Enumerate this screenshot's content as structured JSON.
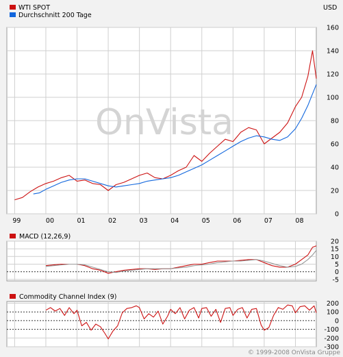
{
  "currency": "USD",
  "watermark": "OnVista",
  "copyright": "© 1999-2008 OnVista Gruppe",
  "colors": {
    "price": "#cc1111",
    "average": "#1166dd",
    "macd": "#cc1111",
    "signal": "#999999",
    "cci": "#cc1111",
    "grid": "#cfcfcf",
    "panel": "#ffffff",
    "background": "#f2f2f2",
    "watermark": "#d4d4d4"
  },
  "chart_data": [
    {
      "type": "line",
      "name": "price",
      "legend": [
        "WTI SPOT",
        "Durchschnitt 200 Tage"
      ],
      "x_labels": [
        "99",
        "00",
        "01",
        "02",
        "03",
        "04",
        "05",
        "06",
        "07",
        "08"
      ],
      "y_ticks": [
        0,
        20,
        40,
        60,
        80,
        100,
        120,
        140,
        160
      ],
      "ylim": [
        0,
        160
      ],
      "xlim": [
        1998.75,
        2008.67
      ],
      "grid": true,
      "series": [
        {
          "name": "WTI SPOT",
          "x": [
            1999.0,
            1999.25,
            1999.5,
            1999.75,
            2000.0,
            2000.25,
            2000.5,
            2000.75,
            2001.0,
            2001.25,
            2001.5,
            2001.75,
            2002.0,
            2002.25,
            2002.5,
            2002.75,
            2003.0,
            2003.25,
            2003.5,
            2003.75,
            2004.0,
            2004.25,
            2004.5,
            2004.75,
            2005.0,
            2005.25,
            2005.5,
            2005.75,
            2006.0,
            2006.25,
            2006.5,
            2006.75,
            2007.0,
            2007.25,
            2007.5,
            2007.75,
            2008.0,
            2008.2,
            2008.4,
            2008.55,
            2008.67
          ],
          "y": [
            12,
            14,
            19,
            23,
            26,
            28,
            31,
            33,
            28,
            29,
            26,
            25,
            20,
            25,
            27,
            30,
            33,
            35,
            31,
            30,
            33,
            37,
            40,
            50,
            45,
            52,
            58,
            64,
            62,
            70,
            74,
            72,
            60,
            65,
            70,
            78,
            92,
            100,
            118,
            140,
            116
          ]
        },
        {
          "name": "Durchschnitt 200 Tage",
          "x": [
            1999.6,
            1999.8,
            2000.0,
            2000.25,
            2000.5,
            2000.75,
            2001.0,
            2001.25,
            2001.5,
            2001.75,
            2002.0,
            2002.25,
            2002.5,
            2002.75,
            2003.0,
            2003.25,
            2003.5,
            2003.75,
            2004.0,
            2004.25,
            2004.5,
            2004.75,
            2005.0,
            2005.25,
            2005.5,
            2005.75,
            2006.0,
            2006.25,
            2006.5,
            2006.75,
            2007.0,
            2007.25,
            2007.5,
            2007.75,
            2008.0,
            2008.2,
            2008.4,
            2008.55,
            2008.67
          ],
          "y": [
            17,
            18,
            21,
            24,
            27,
            29,
            30,
            30,
            28,
            26,
            24,
            23,
            24,
            25,
            26,
            28,
            29,
            30,
            31,
            33,
            36,
            39,
            42,
            46,
            50,
            54,
            58,
            62,
            65,
            67,
            66,
            64,
            63,
            66,
            73,
            82,
            93,
            103,
            111
          ]
        }
      ]
    },
    {
      "type": "line",
      "name": "macd",
      "title": "MACD (12,26,9)",
      "y_ticks": [
        -5,
        0,
        5,
        10,
        15,
        20
      ],
      "ylim": [
        -6,
        20
      ],
      "xlim": [
        1998.75,
        2008.67
      ],
      "grid": true,
      "series": [
        {
          "name": "MACD",
          "x": [
            2000.0,
            2000.25,
            2000.5,
            2000.75,
            2001.0,
            2001.25,
            2001.5,
            2001.75,
            2002.0,
            2002.25,
            2002.5,
            2002.75,
            2003.0,
            2003.25,
            2003.5,
            2003.75,
            2004.0,
            2004.25,
            2004.5,
            2004.75,
            2005.0,
            2005.25,
            2005.5,
            2005.75,
            2006.0,
            2006.25,
            2006.5,
            2006.75,
            2007.0,
            2007.25,
            2007.5,
            2007.75,
            2008.0,
            2008.2,
            2008.4,
            2008.55,
            2008.67
          ],
          "y": [
            4,
            4.5,
            5,
            5,
            5,
            4,
            2,
            1,
            -1,
            0,
            1,
            1.5,
            2,
            2,
            1.5,
            2,
            2,
            3,
            4,
            5,
            5,
            6,
            7,
            7,
            7,
            7.5,
            8,
            8,
            6,
            4,
            3,
            3,
            5,
            8,
            11,
            16,
            17
          ]
        },
        {
          "name": "Signal",
          "x": [
            2000.0,
            2000.25,
            2000.5,
            2000.75,
            2001.0,
            2001.25,
            2001.5,
            2001.75,
            2002.0,
            2002.25,
            2002.5,
            2002.75,
            2003.0,
            2003.25,
            2003.5,
            2003.75,
            2004.0,
            2004.25,
            2004.5,
            2004.75,
            2005.0,
            2005.25,
            2005.5,
            2005.75,
            2006.0,
            2006.25,
            2006.5,
            2006.75,
            2007.0,
            2007.25,
            2007.5,
            2007.75,
            2008.0,
            2008.2,
            2008.4,
            2008.55,
            2008.67
          ],
          "y": [
            3.5,
            4,
            4.5,
            5,
            5,
            4.5,
            3,
            1.5,
            0,
            -0.5,
            0.5,
            1,
            1.5,
            2,
            2,
            2,
            2,
            2.5,
            3,
            4,
            4.5,
            5,
            6,
            6.5,
            7,
            7,
            7.5,
            8,
            7,
            5.5,
            4,
            3,
            3.5,
            5,
            8,
            11,
            14
          ]
        }
      ]
    },
    {
      "type": "line",
      "name": "cci",
      "title": "Commodity Channel Index (9)",
      "y_ticks": [
        -300,
        -200,
        -100,
        0,
        100,
        200
      ],
      "ylim": [
        -300,
        220
      ],
      "xlim": [
        1998.75,
        2008.67
      ],
      "grid": true,
      "series": [
        {
          "name": "Commodity Channel Index (9)",
          "x": [
            2000.0,
            2000.15,
            2000.3,
            2000.45,
            2000.6,
            2000.75,
            2000.9,
            2001.0,
            2001.15,
            2001.3,
            2001.45,
            2001.6,
            2001.75,
            2001.9,
            2002.0,
            2002.15,
            2002.3,
            2002.45,
            2002.6,
            2002.75,
            2002.9,
            2003.0,
            2003.15,
            2003.3,
            2003.45,
            2003.6,
            2003.75,
            2003.9,
            2004.0,
            2004.15,
            2004.3,
            2004.45,
            2004.6,
            2004.75,
            2004.9,
            2005.0,
            2005.15,
            2005.3,
            2005.45,
            2005.6,
            2005.75,
            2005.9,
            2006.0,
            2006.15,
            2006.3,
            2006.45,
            2006.6,
            2006.75,
            2006.9,
            2007.0,
            2007.15,
            2007.3,
            2007.45,
            2007.6,
            2007.75,
            2007.9,
            2008.0,
            2008.15,
            2008.3,
            2008.45,
            2008.6,
            2008.67
          ],
          "y": [
            120,
            150,
            110,
            140,
            60,
            150,
            80,
            120,
            -60,
            -20,
            -110,
            -40,
            -70,
            -150,
            -210,
            -120,
            -60,
            90,
            140,
            150,
            170,
            150,
            20,
            80,
            40,
            110,
            -40,
            50,
            130,
            80,
            150,
            20,
            120,
            150,
            30,
            140,
            150,
            50,
            130,
            -20,
            140,
            150,
            60,
            130,
            150,
            30,
            130,
            140,
            -50,
            -110,
            -80,
            60,
            150,
            130,
            180,
            170,
            90,
            160,
            170,
            120,
            170,
            90
          ]
        }
      ]
    }
  ]
}
